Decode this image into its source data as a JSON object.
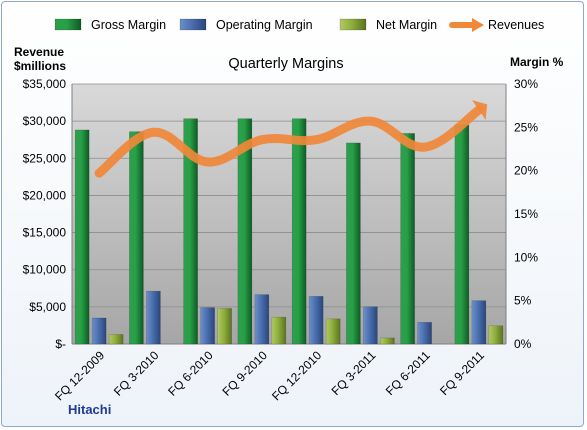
{
  "chart_data": {
    "type": "bar",
    "title": "Quarterly Margins",
    "caption": "Hitachi",
    "left_axis": {
      "title_lines": [
        "Revenue",
        "$millions"
      ],
      "range": [
        0,
        35000
      ],
      "ticks": [
        "$-",
        "$5,000",
        "$10,000",
        "$15,000",
        "$20,000",
        "$25,000",
        "$30,000",
        "$35,000"
      ]
    },
    "right_axis": {
      "title": "Margin %",
      "range": [
        0,
        30
      ],
      "ticks": [
        "0%",
        "5%",
        "10%",
        "15%",
        "20%",
        "25%",
        "30%"
      ]
    },
    "categories": [
      "FQ 12-2009",
      "FQ 3-2010",
      "FQ 6-2010",
      "FQ 9-2010",
      "FQ 12-2010",
      "FQ 3-2011",
      "FQ 6-2011",
      "FQ 9-2011"
    ],
    "series": [
      {
        "name": "Gross Margin",
        "axis": "right",
        "kind": "bar",
        "color": "#1f8a3c",
        "values": [
          24.7,
          24.5,
          26.0,
          26.0,
          26.0,
          23.2,
          24.3,
          25.3
        ]
      },
      {
        "name": "Operating Margin",
        "axis": "right",
        "kind": "bar",
        "color": "#4a6fb0",
        "values": [
          3.0,
          6.1,
          4.2,
          5.7,
          5.5,
          4.3,
          2.5,
          5.0
        ]
      },
      {
        "name": "Net Margin",
        "axis": "right",
        "kind": "bar",
        "color": "#8fae3c",
        "values": [
          1.1,
          0.0,
          4.1,
          3.1,
          2.9,
          0.7,
          0.0,
          2.1
        ]
      },
      {
        "name": "Revenues",
        "axis": "left",
        "kind": "line",
        "color": "#f0883a",
        "values": [
          23000,
          28500,
          24500,
          27500,
          27500,
          30000,
          26500,
          31500
        ]
      }
    ],
    "legend_position": "top",
    "grid": true
  }
}
